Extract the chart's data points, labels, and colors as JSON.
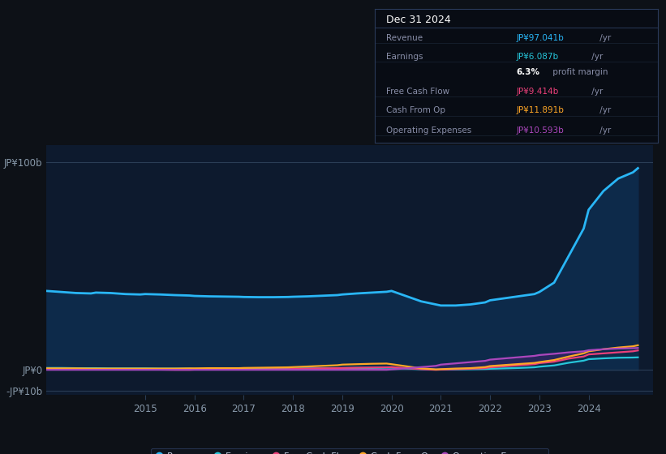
{
  "bg_color": "#0d1117",
  "plot_bg_color": "#0d1a2e",
  "title_date": "Dec 31 2024",
  "table_rows": [
    {
      "label": "Revenue",
      "value": "JP¥97.041b",
      "value_color": "#29b6f6",
      "suffix": " /yr"
    },
    {
      "label": "Earnings",
      "value": "JP¥6.087b",
      "value_color": "#26c6da",
      "suffix": " /yr"
    },
    {
      "label": "",
      "value": "6.3%",
      "value_color": "#ffffff",
      "suffix": " profit margin",
      "bold": true
    },
    {
      "label": "Free Cash Flow",
      "value": "JP¥9.414b",
      "value_color": "#ec407a",
      "suffix": " /yr"
    },
    {
      "label": "Cash From Op",
      "value": "JP¥11.891b",
      "value_color": "#ffa726",
      "suffix": " /yr"
    },
    {
      "label": "Operating Expenses",
      "value": "JP¥10.593b",
      "value_color": "#ab47bc",
      "suffix": " /yr"
    }
  ],
  "ylabel_top": "JP¥100b",
  "ylabel_zero": "JP¥0",
  "ylabel_neg": "-JP¥10b",
  "ylim": [
    -12,
    108
  ],
  "years": [
    2013.0,
    2013.3,
    2013.6,
    2013.9,
    2014.0,
    2014.3,
    2014.6,
    2014.9,
    2015.0,
    2015.3,
    2015.6,
    2015.9,
    2016.0,
    2016.3,
    2016.6,
    2016.9,
    2017.0,
    2017.3,
    2017.6,
    2017.9,
    2018.0,
    2018.3,
    2018.6,
    2018.9,
    2019.0,
    2019.3,
    2019.6,
    2019.9,
    2020.0,
    2020.3,
    2020.6,
    2020.9,
    2021.0,
    2021.3,
    2021.6,
    2021.9,
    2022.0,
    2022.3,
    2022.6,
    2022.9,
    2023.0,
    2023.3,
    2023.6,
    2023.9,
    2024.0,
    2024.3,
    2024.6,
    2024.9,
    2025.0
  ],
  "revenue": [
    38,
    37.5,
    37,
    36.8,
    37.2,
    37,
    36.5,
    36.3,
    36.5,
    36.3,
    36.0,
    35.8,
    35.6,
    35.4,
    35.3,
    35.2,
    35.1,
    35.0,
    35.0,
    35.1,
    35.2,
    35.4,
    35.7,
    36.0,
    36.3,
    36.8,
    37.2,
    37.6,
    38.0,
    35.5,
    33.0,
    31.5,
    31.0,
    31.0,
    31.5,
    32.5,
    33.5,
    34.5,
    35.5,
    36.5,
    37.5,
    42.0,
    55.0,
    68.0,
    77.0,
    86.0,
    92.0,
    95.0,
    97.0
  ],
  "earnings": [
    1.0,
    1.0,
    0.9,
    0.9,
    0.9,
    0.8,
    0.8,
    0.8,
    0.8,
    0.7,
    0.7,
    0.7,
    0.6,
    0.6,
    0.6,
    0.6,
    0.6,
    0.6,
    0.7,
    0.7,
    0.7,
    0.8,
    0.8,
    0.9,
    0.9,
    1.0,
    1.0,
    1.1,
    1.1,
    0.7,
    0.4,
    0.2,
    0.2,
    0.3,
    0.4,
    0.5,
    0.6,
    0.8,
    1.0,
    1.3,
    1.6,
    2.2,
    3.5,
    4.5,
    5.2,
    5.6,
    5.9,
    6.0,
    6.087
  ],
  "free_cash_flow": [
    0.3,
    0.3,
    0.3,
    0.3,
    0.2,
    0.2,
    0.2,
    0.2,
    0.2,
    0.2,
    0.1,
    0.1,
    0.2,
    0.2,
    0.2,
    0.3,
    0.3,
    0.3,
    0.4,
    0.4,
    0.5,
    0.7,
    0.8,
    0.9,
    1.0,
    1.1,
    1.2,
    1.3,
    1.4,
    0.9,
    0.4,
    0.1,
    0.2,
    0.4,
    0.6,
    0.9,
    1.3,
    1.8,
    2.3,
    2.8,
    3.3,
    4.0,
    5.5,
    6.5,
    7.5,
    8.0,
    8.5,
    9.0,
    9.414
  ],
  "cash_from_op": [
    0.8,
    0.8,
    0.8,
    0.7,
    0.7,
    0.7,
    0.7,
    0.7,
    0.7,
    0.7,
    0.7,
    0.8,
    0.8,
    0.9,
    0.9,
    0.9,
    1.0,
    1.1,
    1.2,
    1.3,
    1.4,
    1.7,
    2.0,
    2.3,
    2.6,
    2.8,
    3.0,
    3.1,
    2.8,
    1.8,
    0.8,
    0.3,
    0.4,
    0.7,
    0.9,
    1.4,
    1.9,
    2.4,
    2.9,
    3.4,
    3.8,
    4.8,
    6.5,
    8.0,
    9.0,
    10.0,
    10.8,
    11.4,
    11.891
  ],
  "operating_expenses": [
    0.1,
    0.1,
    0.1,
    0.1,
    0.1,
    0.1,
    0.1,
    0.1,
    0.1,
    0.1,
    0.1,
    0.1,
    0.1,
    0.1,
    0.1,
    0.1,
    0.1,
    0.1,
    0.1,
    0.1,
    0.1,
    0.1,
    0.1,
    0.1,
    0.1,
    0.1,
    0.1,
    0.1,
    0.3,
    0.8,
    1.4,
    2.0,
    2.6,
    3.2,
    3.8,
    4.4,
    5.0,
    5.6,
    6.2,
    6.8,
    7.2,
    7.8,
    8.5,
    9.0,
    9.5,
    10.0,
    10.3,
    10.5,
    10.593
  ],
  "revenue_color": "#29b6f6",
  "earnings_color": "#26c6da",
  "fcf_color": "#ec407a",
  "cashop_color": "#ffa726",
  "opex_color": "#ab47bc",
  "xtick_years": [
    2015,
    2016,
    2017,
    2018,
    2019,
    2020,
    2021,
    2022,
    2023,
    2024
  ],
  "legend_items": [
    {
      "label": "Revenue",
      "color": "#29b6f6"
    },
    {
      "label": "Earnings",
      "color": "#26c6da"
    },
    {
      "label": "Free Cash Flow",
      "color": "#ec407a"
    },
    {
      "label": "Cash From Op",
      "color": "#ffa726"
    },
    {
      "label": "Operating Expenses",
      "color": "#ab47bc"
    }
  ]
}
